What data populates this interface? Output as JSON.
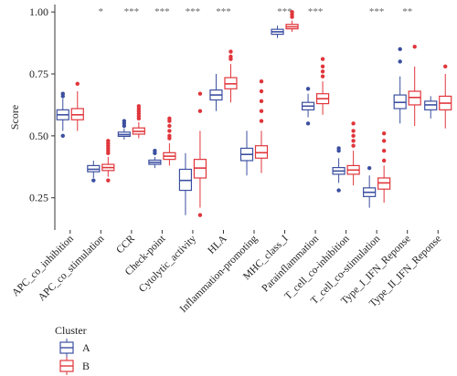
{
  "chart_data": {
    "type": "boxplot",
    "title": "",
    "xlabel": "",
    "ylabel": "Score",
    "ylim": [
      0.12,
      1.03
    ],
    "yticks": [
      "0.25",
      "0.50",
      "0.75",
      "1.00"
    ],
    "categories": [
      "APC_co_inhibition",
      "APC_co_stimulation",
      "CCR",
      "Check-point",
      "Cytolytic_activity",
      "HLA",
      "Inflammation-promoting",
      "MHC_class_I",
      "Parainflammation",
      "T_cell_co-inhibition",
      "T_cell_co-stimulation",
      "Type_I_IFN_Reponse",
      "Type_II_IFN_Reponse"
    ],
    "significance": [
      "",
      "*",
      "***",
      "***",
      "***",
      "***",
      "",
      "***",
      "***",
      "",
      "***",
      "**",
      ""
    ],
    "legend": {
      "title": "Cluster",
      "position": "bottom-left"
    },
    "series": [
      {
        "name": "A",
        "color": "#3b4fa0",
        "boxes": [
          {
            "min": 0.52,
            "q1": 0.565,
            "median": 0.585,
            "q3": 0.605,
            "max": 0.65,
            "outliers": [
              0.5,
              0.66,
              0.67
            ]
          },
          {
            "min": 0.33,
            "q1": 0.355,
            "median": 0.365,
            "q3": 0.38,
            "max": 0.4,
            "outliers": [
              0.32
            ]
          },
          {
            "min": 0.485,
            "q1": 0.498,
            "median": 0.505,
            "q3": 0.515,
            "max": 0.53,
            "outliers": [
              0.54,
              0.55,
              0.56
            ]
          },
          {
            "min": 0.37,
            "q1": 0.385,
            "median": 0.393,
            "q3": 0.402,
            "max": 0.415,
            "outliers": [
              0.43,
              0.44
            ]
          },
          {
            "min": 0.18,
            "q1": 0.28,
            "median": 0.32,
            "q3": 0.365,
            "max": 0.43,
            "outliers": []
          },
          {
            "min": 0.6,
            "q1": 0.645,
            "median": 0.665,
            "q3": 0.685,
            "max": 0.75,
            "outliers": []
          },
          {
            "min": 0.34,
            "q1": 0.4,
            "median": 0.425,
            "q3": 0.45,
            "max": 0.52,
            "outliers": []
          },
          {
            "min": 0.895,
            "q1": 0.91,
            "median": 0.92,
            "q3": 0.93,
            "max": 0.945,
            "outliers": []
          },
          {
            "min": 0.575,
            "q1": 0.605,
            "median": 0.62,
            "q3": 0.635,
            "max": 0.67,
            "outliers": [
              0.55,
              0.69
            ]
          },
          {
            "min": 0.31,
            "q1": 0.345,
            "median": 0.358,
            "q3": 0.372,
            "max": 0.41,
            "outliers": [
              0.28,
              0.44,
              0.45
            ]
          },
          {
            "min": 0.21,
            "q1": 0.255,
            "median": 0.272,
            "q3": 0.29,
            "max": 0.34,
            "outliers": [
              0.37
            ]
          },
          {
            "min": 0.55,
            "q1": 0.61,
            "median": 0.635,
            "q3": 0.665,
            "max": 0.74,
            "outliers": [
              0.8,
              0.85
            ]
          },
          {
            "min": 0.57,
            "q1": 0.605,
            "median": 0.625,
            "q3": 0.64,
            "max": 0.66,
            "outliers": []
          }
        ]
      },
      {
        "name": "B",
        "color": "#e0353b",
        "boxes": [
          {
            "min": 0.52,
            "q1": 0.565,
            "median": 0.585,
            "q3": 0.61,
            "max": 0.68,
            "outliers": [
              0.71
            ]
          },
          {
            "min": 0.335,
            "q1": 0.36,
            "median": 0.372,
            "q3": 0.385,
            "max": 0.415,
            "outliers": [
              0.32,
              0.43,
              0.44,
              0.45,
              0.46,
              0.47,
              0.48
            ]
          },
          {
            "min": 0.49,
            "q1": 0.507,
            "median": 0.518,
            "q3": 0.532,
            "max": 0.555,
            "outliers": [
              0.57,
              0.58,
              0.59,
              0.6,
              0.61,
              0.62
            ]
          },
          {
            "min": 0.38,
            "q1": 0.405,
            "median": 0.418,
            "q3": 0.432,
            "max": 0.47,
            "outliers": [
              0.49,
              0.5,
              0.52,
              0.54,
              0.56,
              0.57
            ]
          },
          {
            "min": 0.21,
            "q1": 0.33,
            "median": 0.37,
            "q3": 0.405,
            "max": 0.52,
            "outliers": [
              0.18,
              0.6,
              0.67
            ]
          },
          {
            "min": 0.635,
            "q1": 0.69,
            "median": 0.71,
            "q3": 0.735,
            "max": 0.79,
            "outliers": [
              0.81,
              0.82,
              0.84
            ]
          },
          {
            "min": 0.35,
            "q1": 0.41,
            "median": 0.432,
            "q3": 0.46,
            "max": 0.52,
            "outliers": [
              0.56,
              0.6,
              0.64,
              0.68,
              0.72
            ]
          },
          {
            "min": 0.92,
            "q1": 0.932,
            "median": 0.94,
            "q3": 0.95,
            "max": 0.965,
            "outliers": [
              0.98,
              0.99,
              1.0
            ]
          },
          {
            "min": 0.585,
            "q1": 0.63,
            "median": 0.65,
            "q3": 0.67,
            "max": 0.72,
            "outliers": [
              0.74,
              0.76,
              0.78,
              0.81
            ]
          },
          {
            "min": 0.3,
            "q1": 0.345,
            "median": 0.362,
            "q3": 0.38,
            "max": 0.44,
            "outliers": [
              0.46,
              0.48,
              0.5,
              0.52,
              0.55
            ]
          },
          {
            "min": 0.23,
            "q1": 0.285,
            "median": 0.31,
            "q3": 0.33,
            "max": 0.38,
            "outliers": [
              0.4,
              0.44,
              0.48,
              0.51
            ]
          },
          {
            "min": 0.54,
            "q1": 0.625,
            "median": 0.655,
            "q3": 0.68,
            "max": 0.78,
            "outliers": [
              0.86
            ]
          },
          {
            "min": 0.53,
            "q1": 0.605,
            "median": 0.632,
            "q3": 0.66,
            "max": 0.75,
            "outliers": [
              0.78
            ]
          }
        ]
      }
    ]
  }
}
